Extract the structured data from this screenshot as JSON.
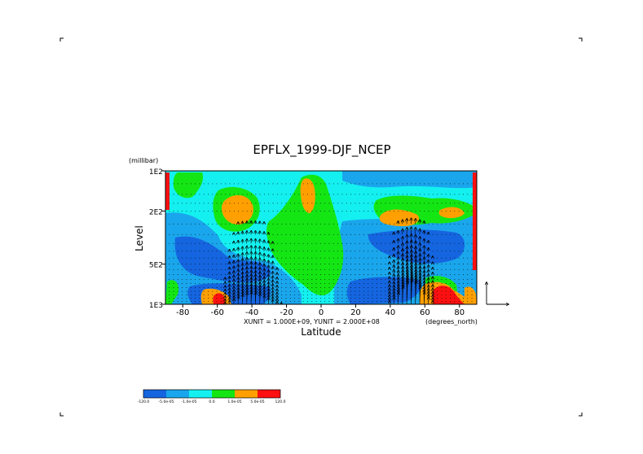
{
  "chart_data": {
    "type": "heatmap",
    "title": "EPFLX_1999-DJF_NCEP",
    "xlabel": "Latitude",
    "ylabel": "Level",
    "y_unit": "(millibar)",
    "x_unit": "(degrees_north)",
    "vector_scale": "XUNIT = 1.000E+09, YUNIT = 2.000E+08",
    "x_ticks": [
      -80,
      -60,
      -40,
      -20,
      0,
      20,
      40,
      60,
      80
    ],
    "x_tick_labels": [
      "-80",
      "-60",
      "-40",
      "-20",
      "0",
      "20",
      "40",
      "60",
      "80"
    ],
    "y_ticks": [
      100,
      200,
      500,
      1000
    ],
    "y_tick_labels": [
      "1E2",
      "2E2",
      "5E2",
      "1E3"
    ],
    "xlim": [
      -90,
      90
    ],
    "ylim": [
      1000,
      100
    ],
    "y_scale": "log",
    "legend": {
      "colors": [
        "#1565e0",
        "#1aa6ec",
        "#14f0f0",
        "#14e614",
        "#ffa000",
        "#ff1010"
      ],
      "labels": [
        "-120.0",
        "-5.0e-05",
        "-1.0e-05",
        "0.0",
        "1.0e-05",
        "5.0e-05",
        "120.0"
      ]
    }
  }
}
